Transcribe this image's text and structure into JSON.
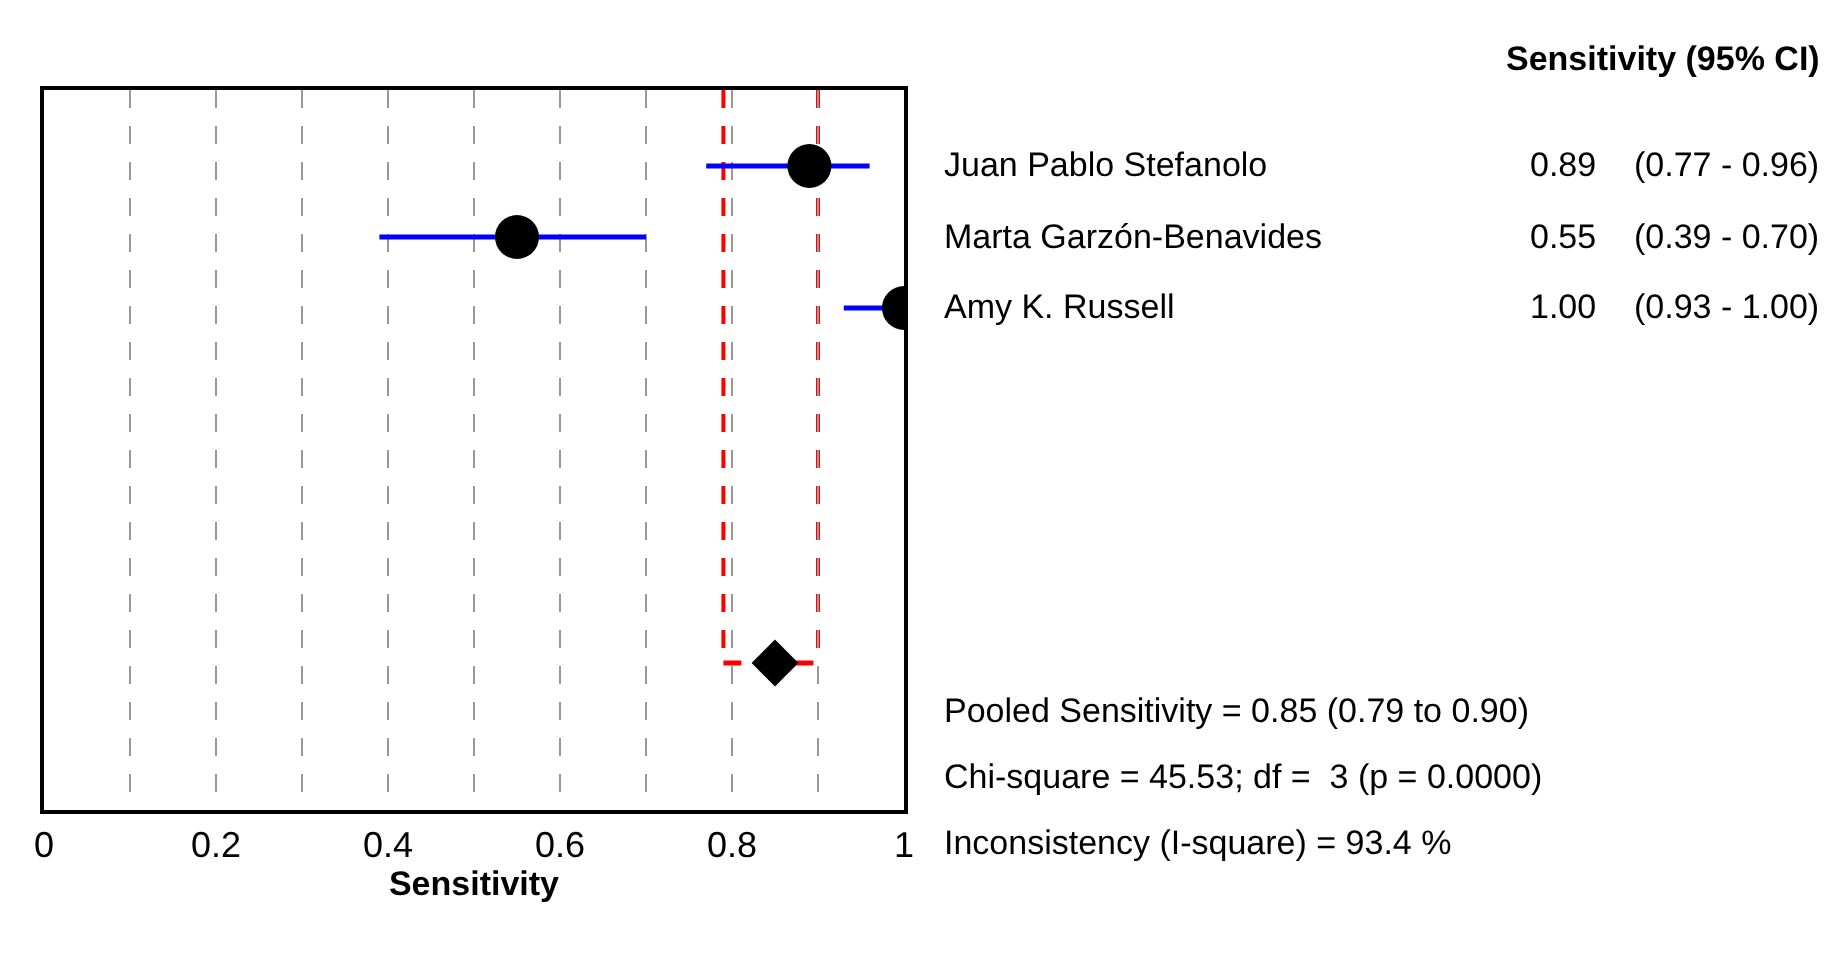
{
  "chart_data": {
    "type": "scatter",
    "orientation": "horizontal",
    "xlabel": "Sensitivity",
    "categories": [
      "Juan Pablo Stefanolo",
      "Marta Garzón-Benavides",
      "Amy K. Russell",
      null,
      null,
      null,
      null,
      null
    ],
    "series": [
      {
        "color": "#000000",
        "marker": "circle",
        "values": [
          0.89,
          0.55,
          1.0,
          null,
          null,
          null,
          null,
          null
        ],
        "errors": [
          [
            0.77,
            0.96
          ],
          [
            0.39,
            0.7
          ],
          [
            0.93,
            1.0
          ],
          null,
          null,
          null,
          null,
          null
        ],
        "value_labels": [
          "0.89   (0.77 - 0.96)",
          "0.55   (0.39 - 0.70)",
          "1.00   (0.93 - 1.00)",
          null,
          null,
          null,
          null,
          null
        ]
      },
      {
        "color": "#000000",
        "marker": "diamond",
        "values": [
          null,
          null,
          null,
          null,
          null,
          null,
          null,
          0.85
        ],
        "errors": [
          null,
          null,
          null,
          null,
          null,
          null,
          null,
          [
            0.79,
            0.9
          ]
        ]
      }
    ],
    "xlim": [
      0,
      1
    ],
    "xticks": [
      0,
      {
        "value": 0.1,
        "label": null
      },
      0.2,
      {
        "value": 0.3,
        "label": null
      },
      0.4,
      {
        "value": 0.5,
        "label": null
      },
      0.6,
      {
        "value": 0.7,
        "label": null
      },
      0.8,
      {
        "value": 0.9,
        "label": null
      },
      1
    ],
    "grid": "x",
    "ref_lines": [
      {
        "axis": "x",
        "value": 0.79,
        "color": "#ff0000",
        "line_style": "dashed"
      },
      {
        "axis": "x",
        "value": 0.9,
        "color": "#ff0000",
        "line_style": "dashed"
      }
    ],
    "annotations": [
      "Sensitivity (95% CI)",
      "Pooled Sensitivity = 0.85 (0.79 to 0.90)",
      "Chi-square = 45.53; df =  3 (p = 0.0000)",
      "Inconsistency (I-square) = 93.4 %"
    ]
  }
}
